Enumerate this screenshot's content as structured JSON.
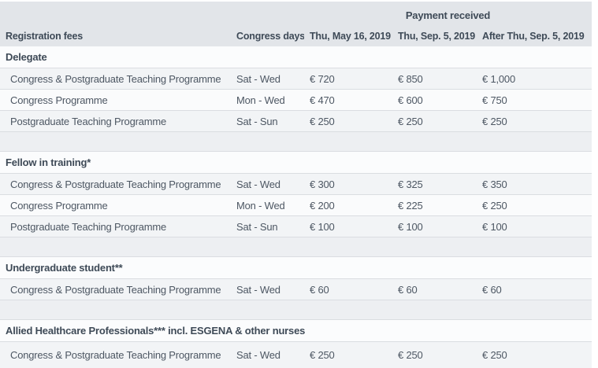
{
  "colors": {
    "page_bg": "#ffffff",
    "header_bg": "#e2e5e9",
    "section_bg": "#fbfcfd",
    "row_odd_bg": "#f2f4f6",
    "row_even_bg": "#fafbfc",
    "gap_bg": "#edeff2",
    "border": "#dadde1",
    "text_bold": "#3e4a57",
    "text_regular": "#4d5763"
  },
  "table": {
    "header": {
      "payment_received": "Payment received",
      "columns": [
        "Registration fees",
        "Congress days",
        "Thu, May 16, 2019",
        "Thu, Sep. 5, 2019",
        "After Thu, Sep. 5, 2019"
      ]
    },
    "sections": [
      {
        "title": "Delegate",
        "rows": [
          {
            "label": "Congress & Postgraduate Teaching Programme",
            "days": "Sat - Wed",
            "prices": [
              "€ 720",
              "€ 850",
              "€ 1,000"
            ]
          },
          {
            "label": "Congress Programme",
            "days": "Mon - Wed",
            "prices": [
              "€ 470",
              "€ 600",
              "€ 750"
            ]
          },
          {
            "label": "Postgraduate Teaching Programme",
            "days": "Sat - Sun",
            "prices": [
              "€ 250",
              "€ 250",
              "€ 250"
            ]
          }
        ]
      },
      {
        "title": "Fellow in training*",
        "rows": [
          {
            "label": "Congress & Postgraduate Teaching Programme",
            "days": "Sat - Wed",
            "prices": [
              "€ 300",
              "€ 325",
              "€ 350"
            ]
          },
          {
            "label": "Congress Programme",
            "days": "Mon - Wed",
            "prices": [
              "€ 200",
              "€ 225",
              "€ 250"
            ]
          },
          {
            "label": "Postgraduate Teaching Programme",
            "days": "Sat - Sun",
            "prices": [
              "€ 100",
              "€ 100",
              "€ 100"
            ]
          }
        ]
      },
      {
        "title": "Undergraduate student**",
        "rows": [
          {
            "label": "Congress & Postgraduate Teaching Programme",
            "days": "Sat - Wed",
            "prices": [
              "€ 60",
              "€ 60",
              "€ 60"
            ]
          }
        ]
      },
      {
        "title": "Allied Healthcare Professionals*** incl. ESGENA & other nurses",
        "rows": [
          {
            "label": "Congress & Postgraduate Teaching Programme",
            "days": "Sat - Wed",
            "prices": [
              "€ 250",
              "€ 250",
              "€ 250"
            ]
          }
        ]
      }
    ]
  }
}
